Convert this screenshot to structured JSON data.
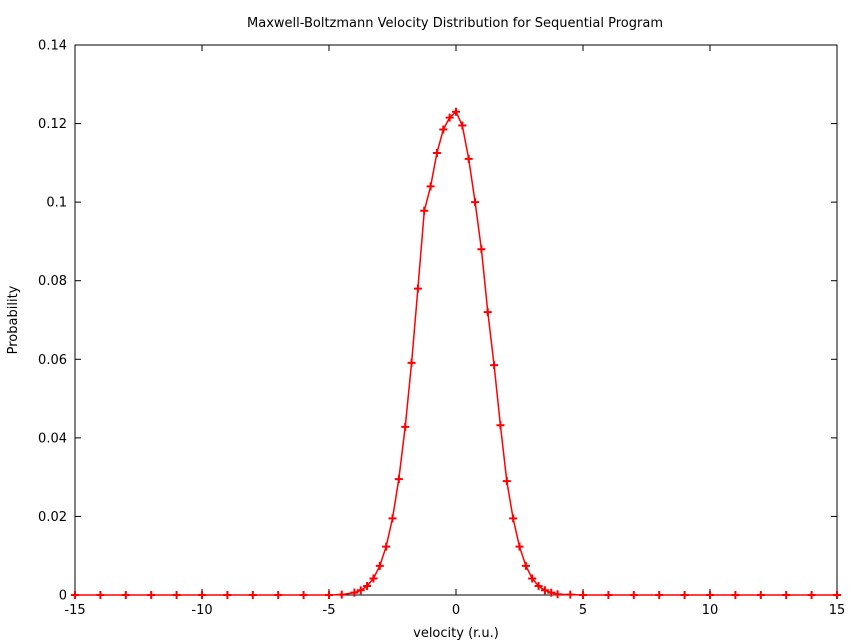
{
  "chart_data": {
    "type": "line",
    "title": "Maxwell-Boltzmann Velocity Distribution for Sequential Program",
    "xlabel": "velocity (r.u.)",
    "ylabel": "Probability",
    "xlim": [
      -15,
      15
    ],
    "ylim": [
      0,
      0.14
    ],
    "xticks": [
      -15,
      -10,
      -5,
      0,
      5,
      10,
      15
    ],
    "xtick_labels": [
      "-15",
      "-10",
      "-5",
      "0",
      "5",
      "10",
      "15"
    ],
    "yticks": [
      0,
      0.02,
      0.04,
      0.06,
      0.08,
      0.1,
      0.12,
      0.14
    ],
    "ytick_labels": [
      "0",
      "0.02",
      "0.04",
      "0.06",
      "0.08",
      "0.1",
      "0.12",
      "0.14"
    ],
    "grid": false,
    "legend": "none",
    "series_color": "#ff0000",
    "marker": "plus",
    "series": [
      {
        "x": [
          -15,
          -14,
          -13,
          -12,
          -11,
          -10,
          -9,
          -8,
          -7,
          -6,
          -5,
          -4.5,
          -4,
          -3.75,
          -3.5,
          -3.25,
          -3,
          -2.75,
          -2.5,
          -2.25,
          -2,
          -1.75,
          -1.5,
          -1.25,
          -1,
          -0.75,
          -0.5,
          -0.25,
          0,
          0.25,
          0.5,
          0.75,
          1,
          1.25,
          1.5,
          1.75,
          2,
          2.25,
          2.5,
          2.75,
          3,
          3.25,
          3.5,
          3.75,
          4,
          4.5,
          5,
          6,
          7,
          8,
          9,
          10,
          11,
          12,
          13,
          14,
          15
        ],
        "y": [
          0,
          0,
          0,
          0,
          0,
          0,
          0,
          0,
          0,
          0,
          0,
          0.0001,
          0.0006,
          0.0012,
          0.0023,
          0.0042,
          0.0074,
          0.0123,
          0.0195,
          0.0295,
          0.0428,
          0.0591,
          0.078,
          0.0978,
          0.104,
          0.1125,
          0.1185,
          0.1215,
          0.123,
          0.1195,
          0.111,
          0.1,
          0.088,
          0.072,
          0.0585,
          0.0432,
          0.029,
          0.0195,
          0.0123,
          0.0074,
          0.0042,
          0.0023,
          0.0012,
          0.0006,
          0.0002,
          0.0001,
          0,
          0,
          0,
          0,
          0,
          0,
          0,
          0,
          0,
          0,
          0
        ]
      }
    ]
  }
}
